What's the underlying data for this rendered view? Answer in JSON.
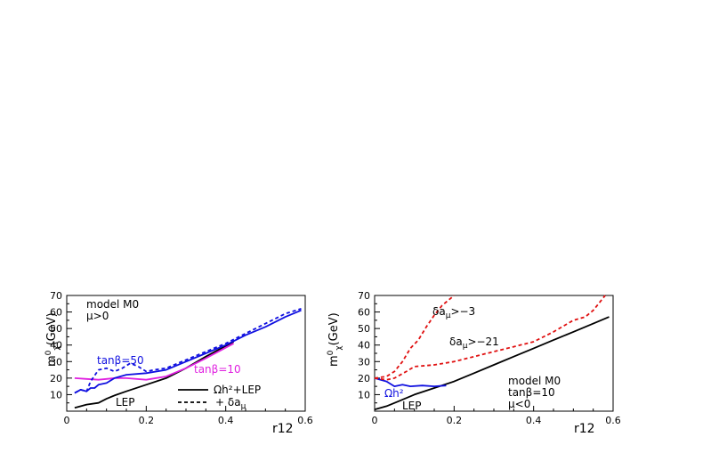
{
  "chart_data": [
    {
      "type": "line",
      "xlabel": "r12",
      "ylabel": "m",
      "ylabel_sup": "0",
      "ylabel_sub": "χ",
      "ylabel_unit": "(GeV)",
      "xlim": [
        0,
        0.6
      ],
      "ylim": [
        0,
        70
      ],
      "xticks": [
        "0",
        "0.2",
        "0.4",
        "0.6"
      ],
      "yticks": [
        "10",
        "20",
        "30",
        "40",
        "50",
        "60",
        "70"
      ],
      "annotations": {
        "model": "model M0",
        "sign_mu": "μ>0",
        "tanb50": "tanβ=50",
        "tanb10": "tanβ=10",
        "lep": "LEP",
        "legend_solid": "Ωh²+LEP",
        "legend_dashed": "+ δa",
        "legend_dashed_sub": "μ"
      },
      "series": [
        {
          "key": "lep",
          "color": "#000000",
          "dash": false,
          "x": [
            0.02,
            0.05,
            0.08,
            0.1,
            0.12,
            0.15,
            0.2,
            0.25,
            0.3,
            0.35,
            0.42
          ],
          "y": [
            2,
            4,
            5,
            7.5,
            9.5,
            12,
            16,
            20,
            26,
            33,
            42
          ]
        },
        {
          "key": "tanb10_solid",
          "color": "#e020e0",
          "dash": false,
          "x": [
            0.02,
            0.05,
            0.08,
            0.1,
            0.12,
            0.15,
            0.2,
            0.25,
            0.3,
            0.35,
            0.42
          ],
          "y": [
            20,
            19.5,
            19,
            19.5,
            20,
            20,
            19,
            21,
            26,
            32,
            41
          ]
        },
        {
          "key": "tanb50_solid",
          "color": "#1010e0",
          "dash": false,
          "x": [
            0.02,
            0.035,
            0.05,
            0.06,
            0.07,
            0.08,
            0.1,
            0.12,
            0.15,
            0.2,
            0.25,
            0.3,
            0.35,
            0.4,
            0.45,
            0.5,
            0.55,
            0.59
          ],
          "y": [
            11,
            13,
            12,
            14,
            14,
            16,
            17,
            20,
            22,
            23,
            25,
            30,
            35,
            40,
            46,
            51,
            57,
            61
          ]
        },
        {
          "key": "tanb50_dashed",
          "color": "#1010e0",
          "dash": true,
          "x": [
            0.02,
            0.035,
            0.05,
            0.06,
            0.08,
            0.1,
            0.12,
            0.14,
            0.16,
            0.18,
            0.2,
            0.22,
            0.25,
            0.3,
            0.35,
            0.4,
            0.45,
            0.5,
            0.55,
            0.59
          ],
          "y": [
            11,
            13,
            12,
            18,
            25,
            26,
            24,
            26,
            29,
            27,
            24,
            25,
            26,
            31,
            36,
            41,
            47,
            53,
            59,
            62
          ]
        }
      ]
    },
    {
      "type": "line",
      "xlabel": "r12",
      "ylabel": "m",
      "ylabel_sup": "0",
      "ylabel_sub": "χ",
      "ylabel_unit": "(GeV)",
      "xlim": [
        0,
        0.6
      ],
      "ylim": [
        0,
        70
      ],
      "xticks": [
        "0",
        "0.2",
        "0.4",
        "0.6"
      ],
      "yticks": [
        "10",
        "20",
        "30",
        "40",
        "50",
        "60",
        "70"
      ],
      "annotations": {
        "da3": "δa",
        "da3_sub": "μ",
        "da3_rest": ">−3",
        "da21": "δa",
        "da21_sub": "μ",
        "da21_rest": ">−21",
        "omega": "Ωh²",
        "lep": "LEP",
        "model": "model M0",
        "tanb": "tanβ=10",
        "sign_mu": "μ<0"
      },
      "series": [
        {
          "key": "black",
          "color": "#000000",
          "dash": false,
          "x": [
            0.0,
            0.03,
            0.06,
            0.1,
            0.15,
            0.2,
            0.25,
            0.3,
            0.35,
            0.4,
            0.45,
            0.5,
            0.55,
            0.59
          ],
          "y": [
            1,
            3,
            6,
            10,
            14,
            18,
            23,
            28,
            33,
            38,
            43,
            48,
            53,
            57
          ]
        },
        {
          "key": "omega",
          "color": "#1010e0",
          "dash": false,
          "x": [
            0.0,
            0.03,
            0.05,
            0.07,
            0.09,
            0.12,
            0.15,
            0.18
          ],
          "y": [
            20,
            18,
            15,
            16,
            15,
            15.5,
            15,
            15.5
          ]
        },
        {
          "key": "da3",
          "color": "#e01010",
          "dash": true,
          "x": [
            0.0,
            0.03,
            0.05,
            0.07,
            0.09,
            0.11,
            0.13,
            0.15,
            0.17,
            0.19,
            0.2
          ],
          "y": [
            20,
            21,
            24,
            30,
            38,
            43,
            51,
            58,
            64,
            68,
            70
          ]
        },
        {
          "key": "da21",
          "color": "#e01010",
          "dash": true,
          "x": [
            0.0,
            0.03,
            0.05,
            0.08,
            0.1,
            0.15,
            0.2,
            0.25,
            0.3,
            0.35,
            0.4,
            0.45,
            0.5,
            0.53,
            0.55,
            0.58
          ],
          "y": [
            20,
            19,
            20,
            24,
            27,
            28,
            30,
            33,
            36,
            39,
            42,
            48,
            55,
            57,
            61,
            70
          ]
        }
      ]
    }
  ]
}
